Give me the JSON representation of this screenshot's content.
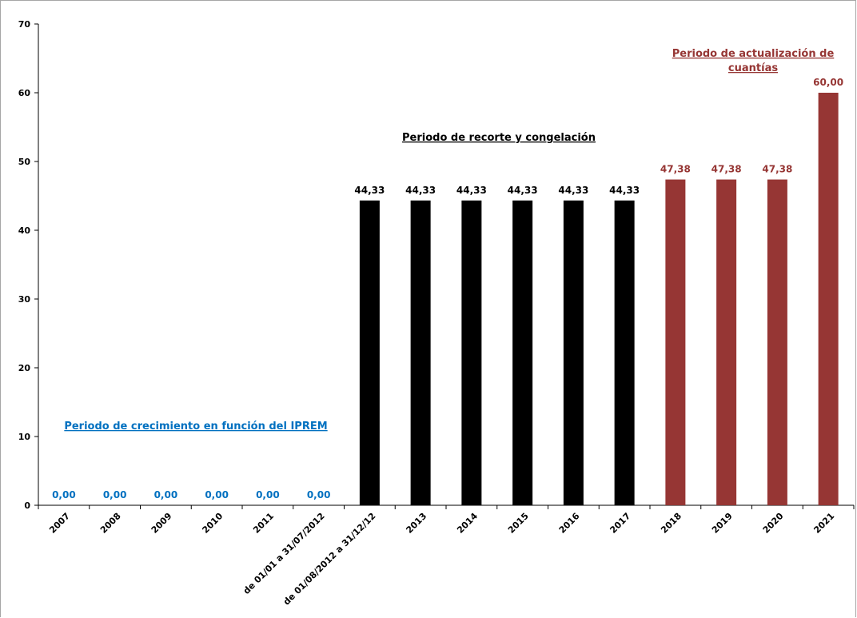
{
  "chart_data": {
    "type": "bar",
    "title": "",
    "xlabel": "",
    "ylabel": "",
    "ylim": [
      0,
      70
    ],
    "y_ticks": [
      "0",
      "10",
      "20",
      "30",
      "40",
      "50",
      "60",
      "70"
    ],
    "grid": false,
    "legend": "none",
    "categories": [
      "2007",
      "2008",
      "2009",
      "2010",
      "2011",
      "de 01/01 a 31/07/2012",
      "de 01/08/2012 a 31/12/12",
      "2013",
      "2014",
      "2015",
      "2016",
      "2017",
      "2018",
      "2019",
      "2020",
      "2021"
    ],
    "values": [
      0,
      0,
      0,
      0,
      0,
      0,
      44.33,
      44.33,
      44.33,
      44.33,
      44.33,
      44.33,
      47.38,
      47.38,
      47.38,
      60
    ],
    "value_labels": [
      "0,00",
      "0,00",
      "0,00",
      "0,00",
      "0,00",
      "0,00",
      "44,33",
      "44,33",
      "44,33",
      "44,33",
      "44,33",
      "44,33",
      "47,38",
      "47,38",
      "47,38",
      "60,00"
    ],
    "bar_colors": [
      "#0070c0",
      "#0070c0",
      "#0070c0",
      "#0070c0",
      "#0070c0",
      "#0070c0",
      "#000000",
      "#000000",
      "#000000",
      "#000000",
      "#000000",
      "#000000",
      "#963634",
      "#963634",
      "#963634",
      "#963634"
    ],
    "annotations": [
      {
        "lines": [
          "Periodo de crecimiento en función del IPREM"
        ],
        "color": "#0070c0"
      },
      {
        "lines": [
          "Periodo de recorte y congelación"
        ],
        "color": "#000000"
      },
      {
        "lines": [
          "Periodo de actualización de",
          "cuantías"
        ],
        "color": "#963634"
      }
    ]
  }
}
